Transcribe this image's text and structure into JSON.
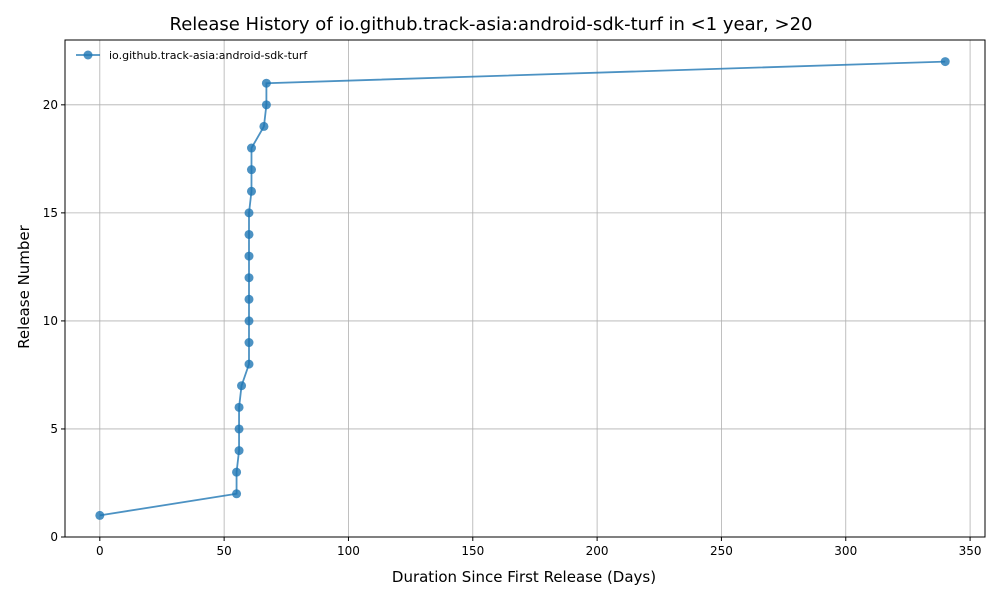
{
  "chart_data": {
    "type": "line",
    "title": "Release History of io.github.track-asia:android-sdk-turf in <1 year, >20",
    "xlabel": "Duration Since First Release (Days)",
    "ylabel": "Release Number",
    "xlim": [
      -14,
      356
    ],
    "ylim": [
      0,
      23
    ],
    "xticks": [
      0,
      50,
      100,
      150,
      200,
      250,
      300,
      350
    ],
    "yticks": [
      0,
      5,
      10,
      15,
      20
    ],
    "grid": true,
    "legend_position": "top-left",
    "colors": {
      "series": "#1f77b4"
    },
    "series": [
      {
        "name": "io.github.track-asia:android-sdk-turf",
        "x": [
          0,
          55,
          55,
          56,
          56,
          56,
          57,
          60,
          60,
          60,
          60,
          60,
          60,
          60,
          60,
          61,
          61,
          61,
          66,
          67,
          67,
          340
        ],
        "y": [
          1,
          2,
          3,
          4,
          5,
          6,
          7,
          8,
          9,
          10,
          11,
          12,
          13,
          14,
          15,
          16,
          17,
          18,
          19,
          20,
          21,
          22
        ]
      }
    ]
  }
}
